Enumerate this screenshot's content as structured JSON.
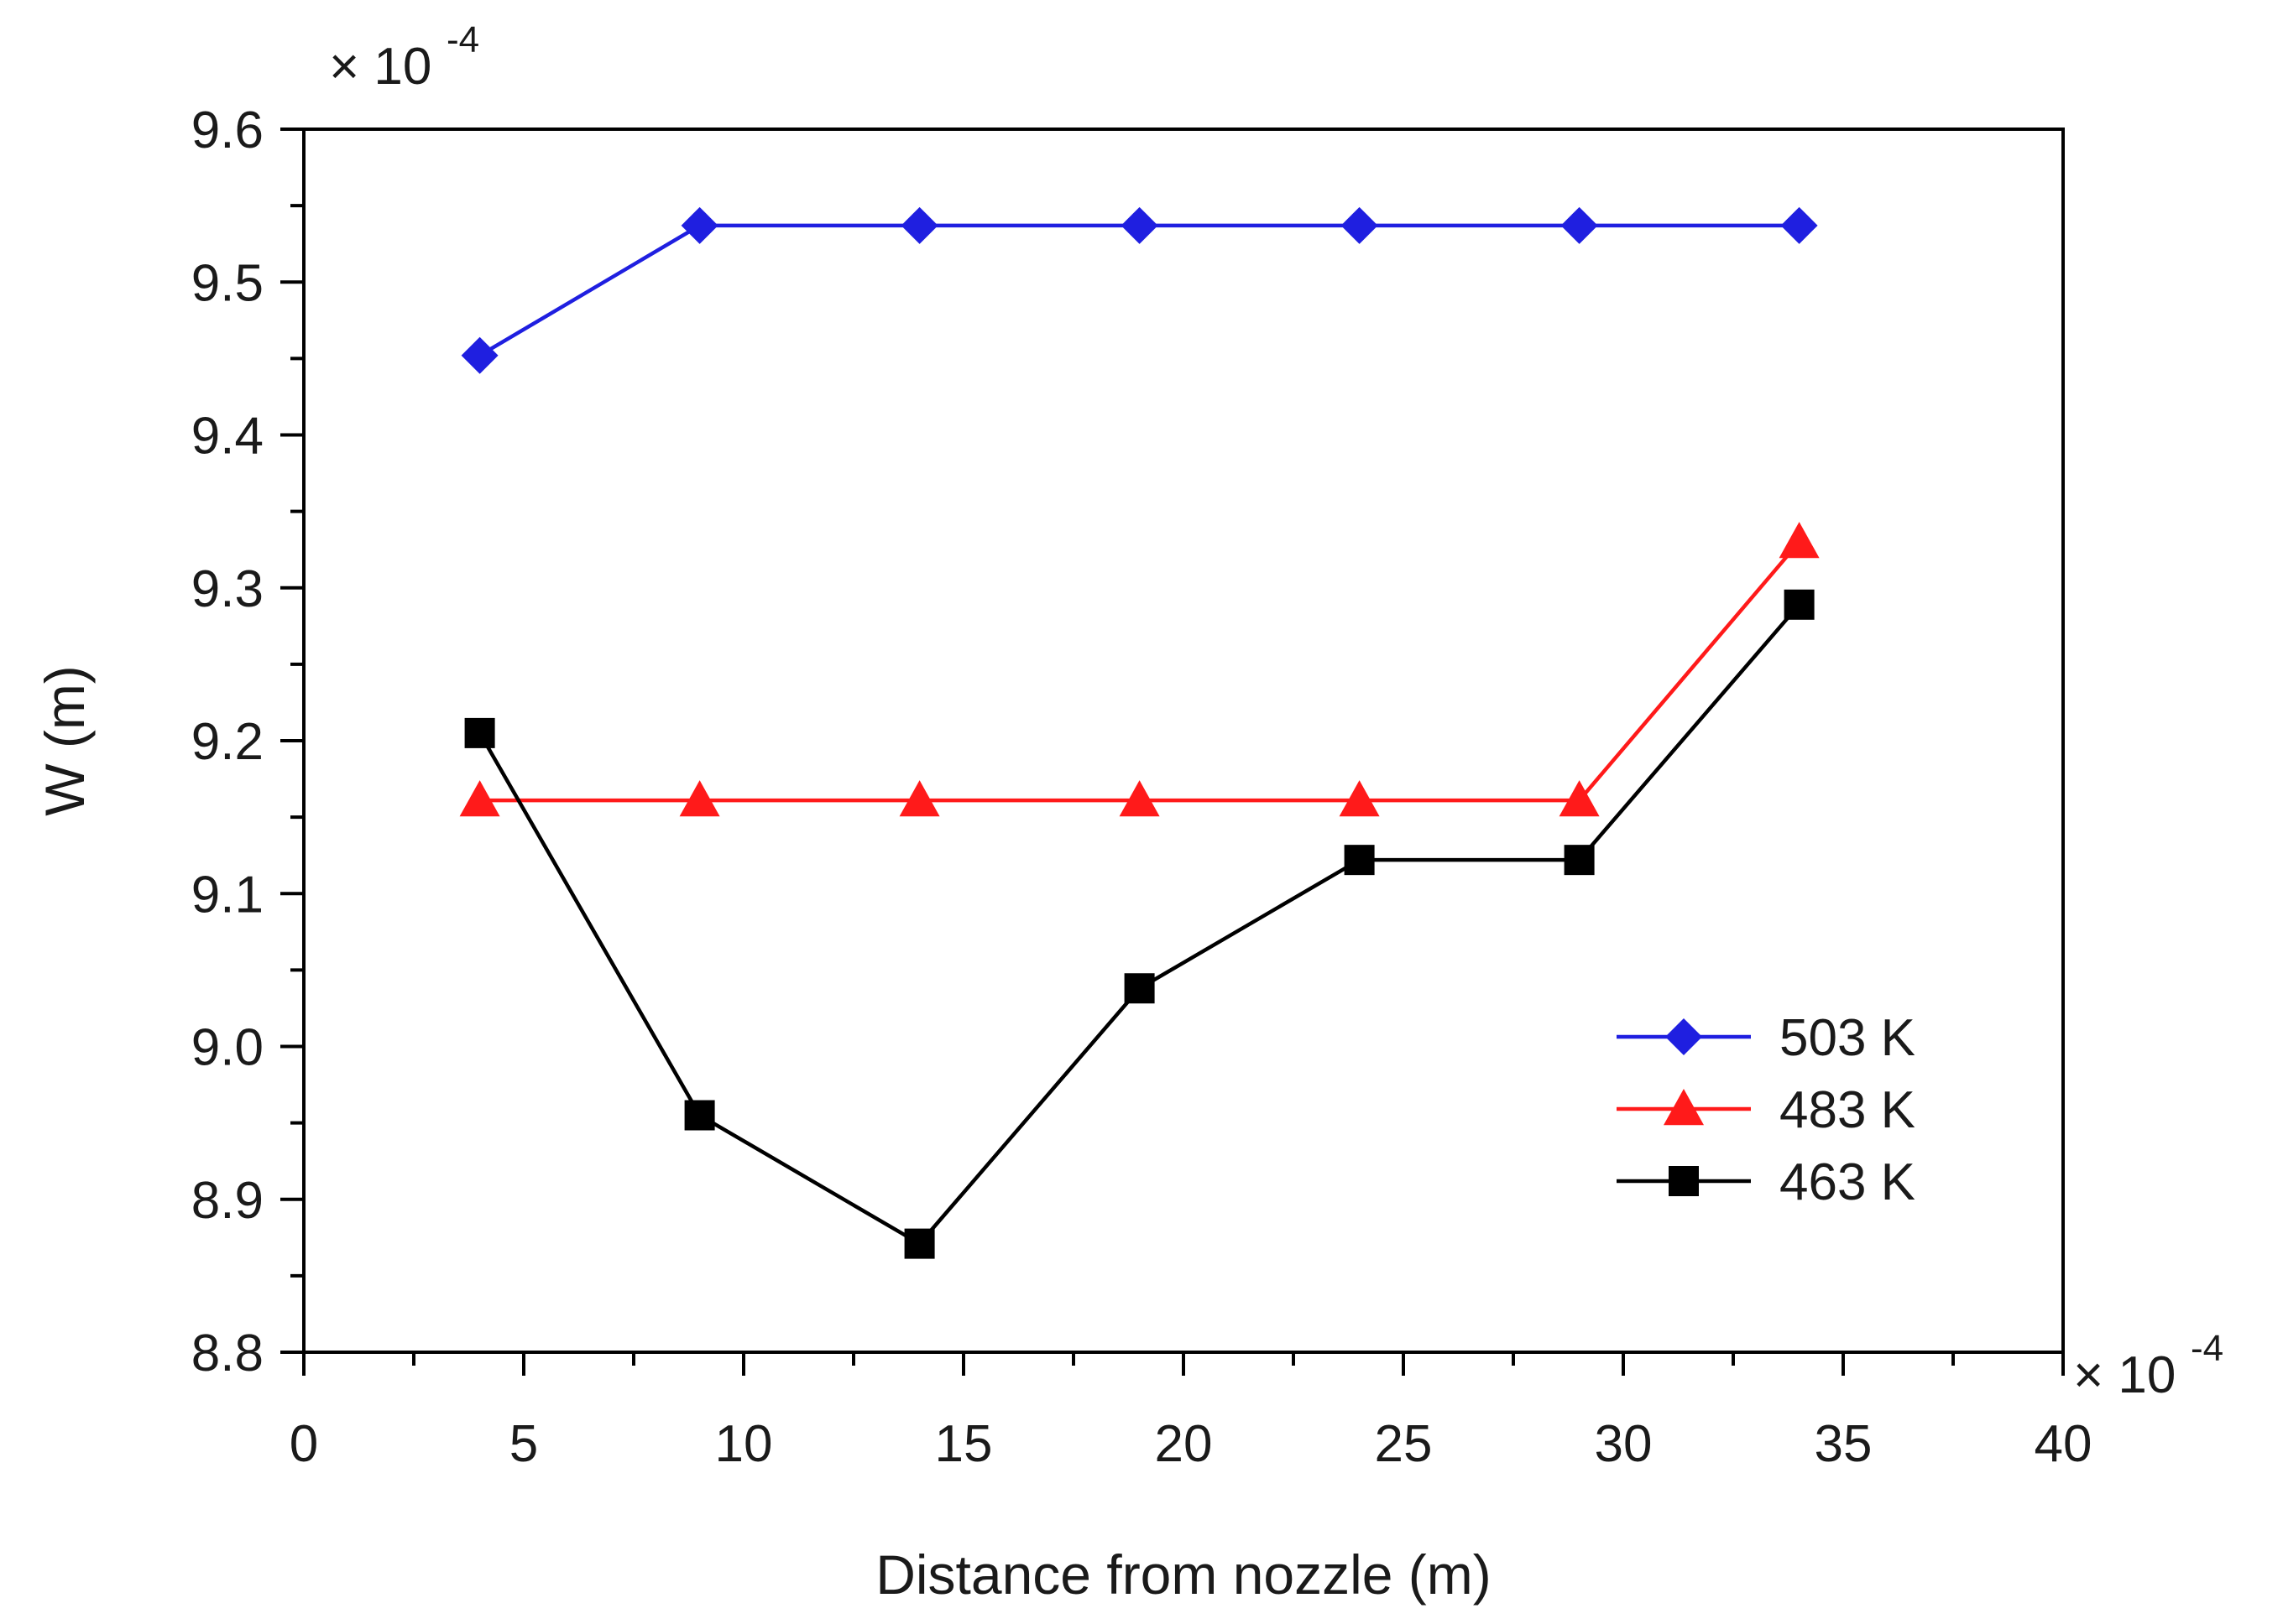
{
  "chart_data": {
    "type": "line",
    "title": "",
    "xlabel": "Distance from nozzle (m)",
    "ylabel": "W (m)",
    "x_multiplier": {
      "prefix": "× 10",
      "exponent": "-4"
    },
    "y_multiplier": {
      "prefix": "× 10",
      "exponent": "-4"
    },
    "xlim": [
      0,
      40
    ],
    "ylim": [
      8.8,
      9.6
    ],
    "x_ticks": [
      0,
      5,
      10,
      15,
      20,
      25,
      30,
      35,
      40
    ],
    "x_tick_labels": [
      "0",
      "5",
      "10",
      "15",
      "20",
      "25",
      "30",
      "35",
      "40"
    ],
    "y_ticks": [
      8.8,
      8.9,
      9.0,
      9.1,
      9.2,
      9.3,
      9.4,
      9.5,
      9.6
    ],
    "y_tick_labels": [
      "8.8",
      "8.9",
      "9.0",
      "9.1",
      "9.2",
      "9.3",
      "9.4",
      "9.5",
      "9.6"
    ],
    "grid": false,
    "legend_position": "bottom-right",
    "x": [
      4,
      9,
      14,
      19,
      24,
      29,
      34
    ],
    "series": [
      {
        "name": "503 K",
        "color": "#1f1fe0",
        "marker": "diamond",
        "values": [
          9.452,
          9.537,
          9.537,
          9.537,
          9.537,
          9.537,
          9.537
        ]
      },
      {
        "name": "483 K",
        "color": "#ff1a1a",
        "marker": "triangle",
        "values": [
          9.161,
          9.161,
          9.161,
          9.161,
          9.161,
          9.161,
          9.33
        ]
      },
      {
        "name": "463 K",
        "color": "#000000",
        "marker": "square",
        "values": [
          9.205,
          8.955,
          8.871,
          9.038,
          9.122,
          9.122,
          9.289
        ]
      }
    ]
  }
}
